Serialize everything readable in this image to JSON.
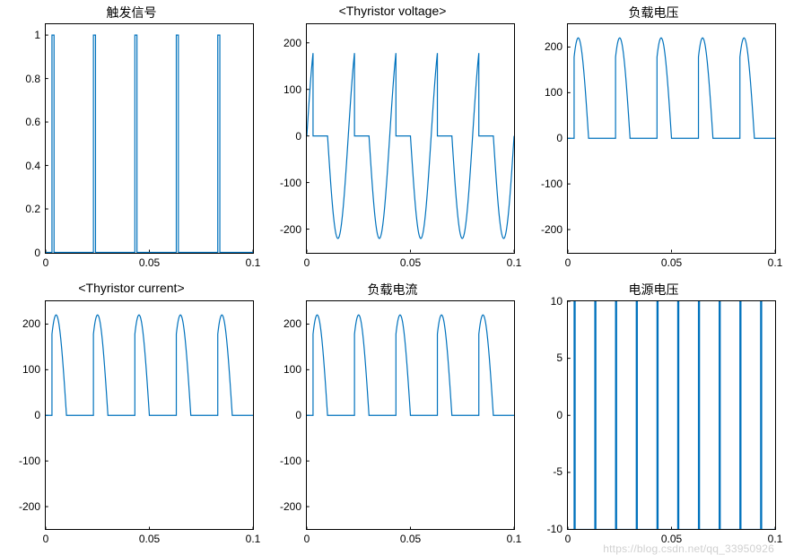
{
  "global": {
    "line_color": "#0072bd",
    "axis_color": "#000000",
    "bg_color": "#ffffff",
    "title_fontsize": 14,
    "tick_fontsize": 12,
    "line_width": 1.2,
    "watermark": "https://blog.csdn.net/qq_33950926"
  },
  "panels": [
    {
      "id": "trigger",
      "title": "触发信号",
      "type": "line",
      "xlim": [
        0,
        0.1
      ],
      "ylim": [
        0,
        1.05
      ],
      "xticks": [
        0,
        0.05,
        0.1
      ],
      "yticks": [
        0,
        0.2,
        0.4,
        0.6,
        0.8,
        1
      ],
      "pulses_x": [
        0.003,
        0.023,
        0.043,
        0.063,
        0.083
      ],
      "pulse_width": 0.001,
      "pulse_height": 1
    },
    {
      "id": "thyristor_voltage",
      "title": "<Thyristor voltage>",
      "type": "line",
      "xlim": [
        0,
        0.1
      ],
      "ylim": [
        -250,
        240
      ],
      "xticks": [
        0,
        0.05,
        0.1
      ],
      "yticks": [
        -200,
        -100,
        0,
        100,
        200
      ],
      "period": 0.02,
      "alpha": 0.003,
      "amplitude": 220
    },
    {
      "id": "load_voltage",
      "title": "负载电压",
      "type": "line",
      "xlim": [
        0,
        0.1
      ],
      "ylim": [
        -250,
        250
      ],
      "xticks": [
        0,
        0.05,
        0.1
      ],
      "yticks": [
        -200,
        -100,
        0,
        100,
        200
      ],
      "period": 0.02,
      "alpha": 0.003,
      "amplitude": 220
    },
    {
      "id": "thyristor_current",
      "title": "<Thyristor current>",
      "type": "line",
      "xlim": [
        0,
        0.1
      ],
      "ylim": [
        -250,
        250
      ],
      "xticks": [
        0,
        0.05,
        0.1
      ],
      "yticks": [
        -200,
        -100,
        0,
        100,
        200
      ],
      "period": 0.02,
      "alpha": 0.003,
      "amplitude": 220
    },
    {
      "id": "load_current",
      "title": "负载电流",
      "type": "line",
      "xlim": [
        0,
        0.1
      ],
      "ylim": [
        -250,
        250
      ],
      "xticks": [
        0,
        0.05,
        0.1
      ],
      "yticks": [
        -200,
        -100,
        0,
        100,
        200
      ],
      "period": 0.02,
      "alpha": 0.003,
      "amplitude": 220
    },
    {
      "id": "source_voltage",
      "title": "电源电压",
      "type": "line",
      "xlim": [
        0,
        0.1
      ],
      "ylim": [
        -10,
        10
      ],
      "xticks": [
        0,
        0.05,
        0.1
      ],
      "yticks": [
        -10,
        -5,
        0,
        5,
        10
      ],
      "pulses_x": [
        0.003,
        0.013,
        0.023,
        0.033,
        0.043,
        0.053,
        0.063,
        0.073,
        0.083,
        0.093
      ],
      "pulse_width": 0.0005,
      "pulse_high": 10,
      "pulse_low": -10
    }
  ]
}
